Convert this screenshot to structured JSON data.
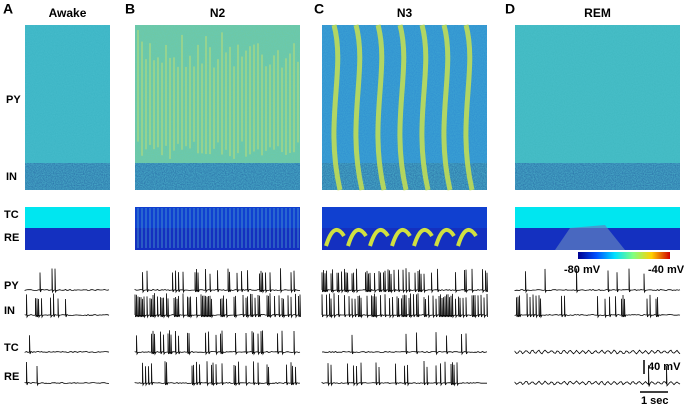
{
  "panels": [
    {
      "letter": "A",
      "title": "Awake"
    },
    {
      "letter": "B",
      "title": "N2"
    },
    {
      "letter": "C",
      "title": "N3"
    },
    {
      "letter": "D",
      "title": "REM"
    }
  ],
  "heatmap_labels": [
    "PY",
    "IN",
    "TC",
    "RE"
  ],
  "trace_labels": [
    "PY",
    "IN",
    "TC",
    "RE"
  ],
  "colorbar": {
    "min_label": "-80 mV",
    "max_label": "-40 mV"
  },
  "scale_bar": {
    "voltage": "40 mV",
    "time": "1 sec"
  }
}
